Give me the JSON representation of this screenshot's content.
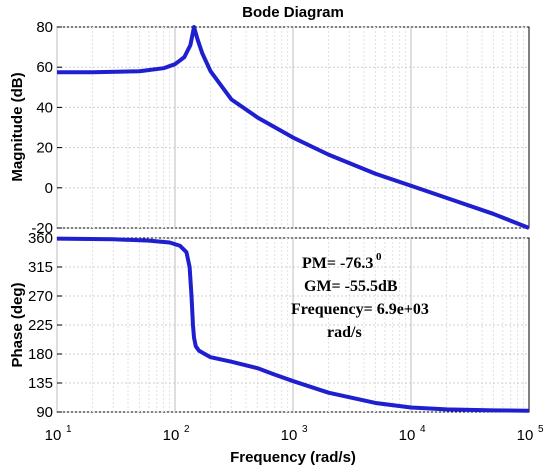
{
  "chart_data": [
    {
      "type": "line",
      "title": "Bode Diagram",
      "panel": "magnitude",
      "xlabel": "Frequency (rad/s)",
      "ylabel": "Magnitude (dB)",
      "x_scale": "log",
      "xlim": [
        10,
        100000
      ],
      "ylim": [
        -20,
        80
      ],
      "yticks": [
        -20,
        0,
        20,
        40,
        60,
        80
      ],
      "grid": true,
      "series": [
        {
          "color": "#1f1fd0",
          "x": [
            10,
            20,
            50,
            80,
            100,
            120,
            135,
            145,
            155,
            170,
            200,
            300,
            500,
            1000,
            2000,
            5000,
            10000,
            20000,
            50000,
            100000
          ],
          "y": [
            57.5,
            57.5,
            58,
            59.5,
            61.5,
            65,
            71,
            80,
            74,
            67,
            58,
            44,
            35,
            25,
            16.5,
            7,
            1,
            -5,
            -13,
            -20
          ]
        }
      ]
    },
    {
      "type": "line",
      "panel": "phase",
      "ylabel": "Phase (deg)",
      "x_scale": "log",
      "xlim": [
        10,
        100000
      ],
      "xticks": [
        {
          "base": "10",
          "exp": "1"
        },
        {
          "base": "10",
          "exp": "2"
        },
        {
          "base": "10",
          "exp": "3"
        },
        {
          "base": "10",
          "exp": "4"
        },
        {
          "base": "10",
          "exp": "5"
        }
      ],
      "ylim": [
        90,
        360
      ],
      "yticks": [
        90,
        135,
        180,
        225,
        270,
        315,
        360
      ],
      "grid": true,
      "annotations": {
        "pm_text": "PM= -76.3",
        "pm_sup": "0",
        "gm_text": "GM= -55.5dB",
        "freq_text": "Frequency= 6.9e+03",
        "unit_text": "rad/s"
      },
      "series": [
        {
          "color": "#1f1fd0",
          "x": [
            10,
            30,
            60,
            90,
            110,
            125,
            133,
            138,
            142,
            145,
            150,
            160,
            200,
            300,
            500,
            700,
            1000,
            2000,
            5000,
            10000,
            20000,
            50000,
            100000
          ],
          "y": [
            359,
            358,
            356,
            353,
            348,
            338,
            315,
            270,
            225,
            205,
            192,
            185,
            175,
            168,
            158,
            148,
            138,
            120,
            104,
            97,
            94,
            92.5,
            92
          ]
        }
      ]
    }
  ]
}
